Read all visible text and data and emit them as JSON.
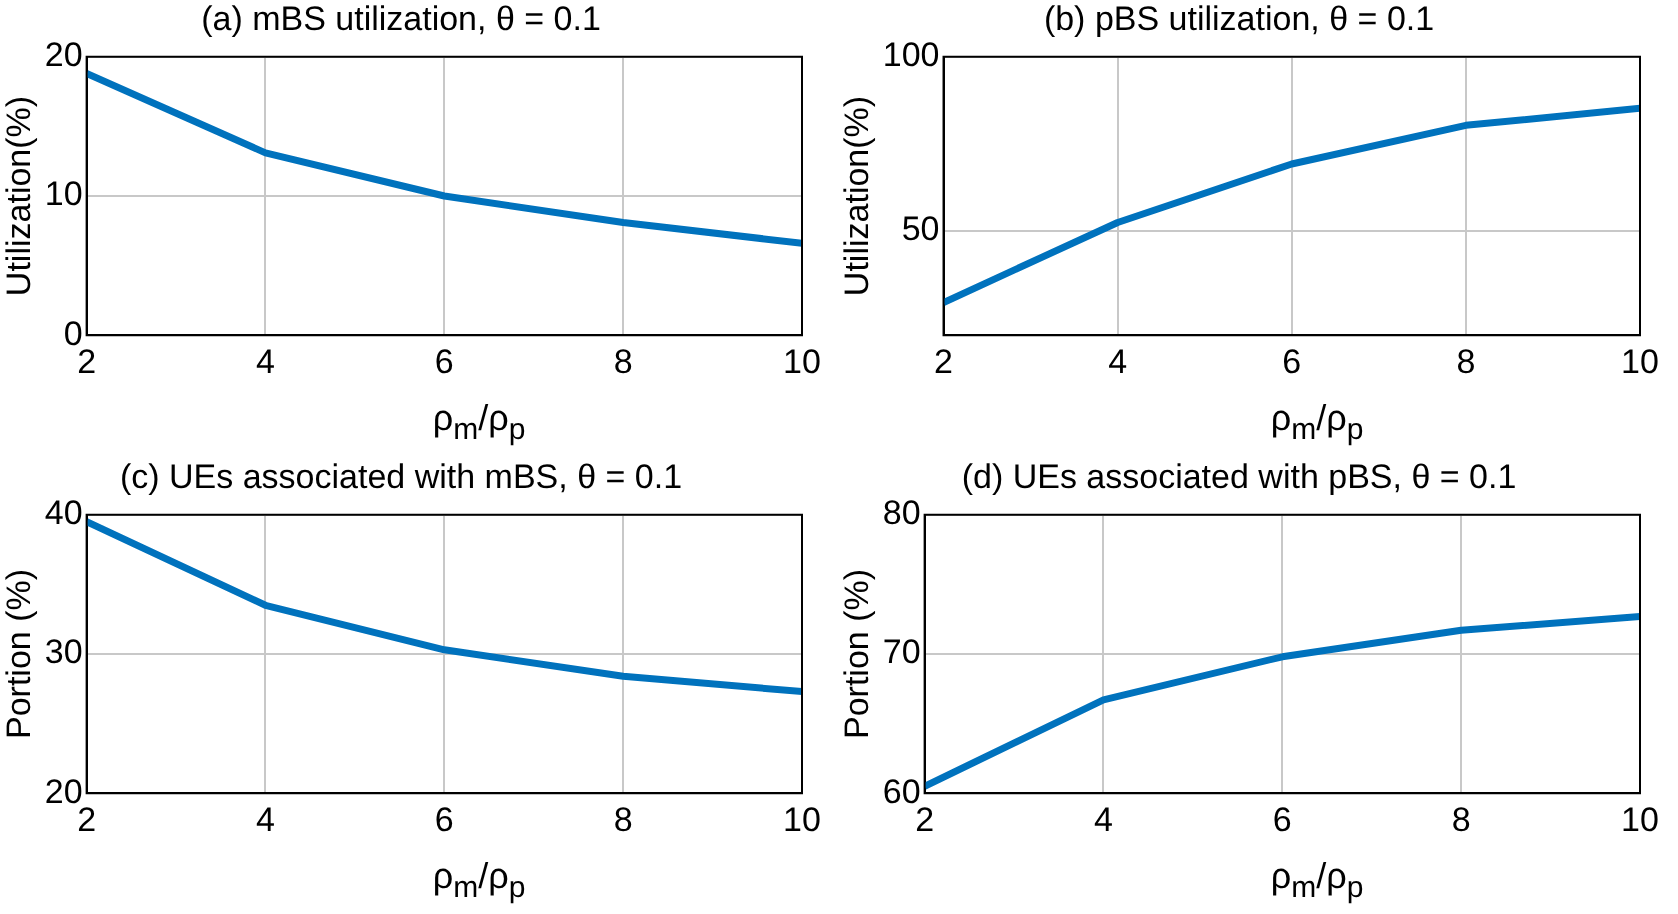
{
  "chart_data": [
    {
      "type": "line",
      "title": "(a) mBS utilization, θ = 0.1",
      "xlabel": "ρ$_{m}$/ρ$_{p}$",
      "ylabel": "Utilization(%)",
      "x": [
        2,
        4,
        6,
        8,
        10
      ],
      "values": [
        18.8,
        13.1,
        10,
        8.1,
        6.6
      ],
      "color": "#0072bd",
      "xlim": [
        2,
        10
      ],
      "xticks": [
        2,
        4,
        6,
        8,
        10
      ],
      "ylim": [
        0,
        20
      ],
      "yticks": [
        0,
        10,
        20
      ],
      "grid": true
    },
    {
      "type": "line",
      "title": "(b) pBS utilization, θ = 0.1",
      "xlabel": "ρ$_{m}$/ρ$_{p}$",
      "ylabel": "Utilization(%)",
      "x": [
        2,
        4,
        6,
        8,
        10
      ],
      "values": [
        29.4,
        52.4,
        69.2,
        80.3,
        85.2
      ],
      "color": "#0072bd",
      "xlim": [
        2,
        10
      ],
      "xticks": [
        2,
        4,
        6,
        8,
        10
      ],
      "ylim": [
        20,
        100
      ],
      "yticks": [
        50,
        100
      ],
      "grid": true
    },
    {
      "type": "line",
      "title": "(c) UEs associated with mBS, θ = 0.1",
      "xlabel": "ρ$_{m}$/ρ$_{p}$",
      "ylabel": "Portion (%)",
      "x": [
        2,
        4,
        6,
        8,
        10
      ],
      "values": [
        39.5,
        33.5,
        30.3,
        28.4,
        27.3
      ],
      "color": "#0072bd",
      "xlim": [
        2,
        10
      ],
      "xticks": [
        2,
        4,
        6,
        8,
        10
      ],
      "ylim": [
        20,
        40
      ],
      "yticks": [
        20,
        30,
        40
      ],
      "grid": true
    },
    {
      "type": "line",
      "title": "(d) UEs associated with pBS, θ = 0.1",
      "xlabel": "ρ$_{m}$/ρ$_{p}$",
      "ylabel": "Portion (%)",
      "x": [
        2,
        4,
        6,
        8,
        10
      ],
      "values": [
        60.5,
        66.7,
        69.8,
        71.7,
        72.7
      ],
      "color": "#0072bd",
      "xlim": [
        2,
        10
      ],
      "xticks": [
        2,
        4,
        6,
        8,
        10
      ],
      "ylim": [
        60,
        80
      ],
      "yticks": [
        60,
        70,
        80
      ],
      "grid": true
    }
  ]
}
